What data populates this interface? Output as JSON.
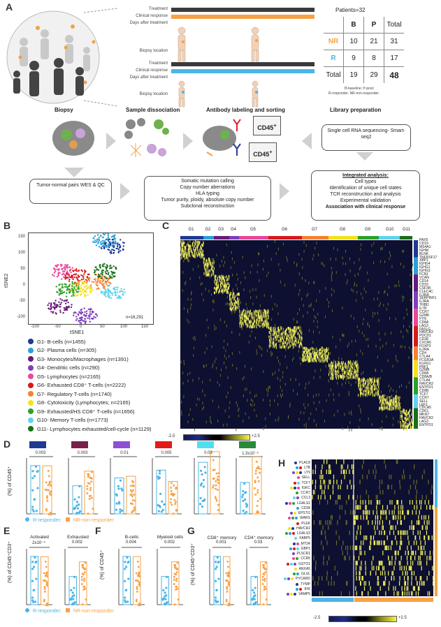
{
  "panels": {
    "A": "A",
    "B": "B",
    "C": "C",
    "D": "D",
    "E": "E",
    "F": "F",
    "G": "G",
    "H": "H"
  },
  "timeline": {
    "rows": [
      "Treatment",
      "Clinical response",
      "Days after treatment",
      "Biopsy location"
    ],
    "colors": {
      "treatment": "#3a3a3a",
      "nr": "#f7a145",
      "r": "#4db4e6"
    }
  },
  "patients_table": {
    "title": "Patients=32",
    "headers": [
      "",
      "B",
      "P",
      "Total"
    ],
    "rows": [
      {
        "label": "NR",
        "values": [
          "10",
          "21",
          "31"
        ]
      },
      {
        "label": "R",
        "values": [
          "9",
          "8",
          "17"
        ]
      },
      {
        "label": "Total",
        "values": [
          "19",
          "29",
          "48"
        ]
      }
    ],
    "footnote_1": "B-baseline; P-post;",
    "footnote_2": "R-responder; NR-non-responder"
  },
  "stages": [
    "Biopsy",
    "Sample dissociation",
    "Antibody labeling and sorting",
    "Library preparation"
  ],
  "cd45_top": "CD45",
  "cd45_bottom": "CD45",
  "rna_box": "Single cell RNA sequencing- Smart-seq2",
  "wes_box": "Tumor-normal pairs WES & QC",
  "mutation_lines": [
    "Somatic mutation calling",
    "Copy number aberrations",
    "HLA typing",
    "Tumor purity, ploidy, absolute copy number",
    "Subclonal reconstruction"
  ],
  "integrated": {
    "title": "Integrated analysis:",
    "lines": [
      "Cell types",
      "Identification of unique cell states",
      "TCR reconstruction and analysis",
      "Experimental validation"
    ],
    "bold": "Association with clinical response"
  },
  "tsne": {
    "xlabel": "tSNE1",
    "ylabel": "tSNE2",
    "n": "n=16,291",
    "xticks": [
      "-100",
      "-50",
      "0",
      "50",
      "100",
      "150"
    ],
    "yticks": [
      "150",
      "100",
      "50",
      "0",
      "-50",
      "-100"
    ]
  },
  "clusters": [
    {
      "name": "G1- B-cells (n=1455)",
      "color": "#1f3a93"
    },
    {
      "name": "G2- Plasma cells (n=305)",
      "color": "#2aa0d8"
    },
    {
      "name": "G3- Monocytes/Macrophages (n=1391)",
      "color": "#6a1a7a"
    },
    {
      "name": "G4- Dendritic cells (n=290)",
      "color": "#7f3fbf"
    },
    {
      "name": "G5- Lymphocytes (n=2165)",
      "color": "#e8479a"
    },
    {
      "name": "G6- Exhausted CD8⁺ T-cells (n=2222)",
      "color": "#d7191c"
    },
    {
      "name": "G7- Regulatory T-cells (n=1740)",
      "color": "#f58231"
    },
    {
      "name": "G8- Cytotoxicity (Lymphocytes; n=2165)",
      "color": "#f5e11a"
    },
    {
      "name": "G9- Exhausted/HS CD8⁺ T-cells (n=1656)",
      "color": "#2ca02c"
    },
    {
      "name": "G10- Memory T-cells (n=1773)",
      "color": "#5fd3f0"
    },
    {
      "name": "G11- Lymphocytes exhausted/cell-cycle (n=1129)",
      "color": "#1b6e1b"
    }
  ],
  "heatmap_c": {
    "groups": [
      "G1",
      "G2",
      "G3",
      "G4",
      "G5",
      "G6",
      "G7",
      "G8",
      "G9",
      "G10",
      "G11"
    ],
    "genes": [
      "PAX5",
      "CD19",
      "MS4A1",
      "IGHM",
      "BLNK",
      "TNFRSF17",
      "XBP1",
      "IGHG4",
      "IGHG1",
      "IGHG3",
      "FCN1",
      "VCAN",
      "CD14",
      "CD33",
      "CSF3R",
      "CLEC4C",
      "IL3RA",
      "SERPINF1",
      "IL3RA",
      "THBD",
      "IL7R",
      "CCR7",
      "GZMK",
      "FYN",
      "CD8A",
      "LAG3",
      "FASLG",
      "HAVCR2",
      "PDCD1",
      "CD38",
      "CXCR6",
      "FOXP3",
      "IL2RA",
      "CD4",
      "CTLA4",
      "FCGR3A",
      "KLRG1",
      "PRF1",
      "GZMB",
      "CD8A",
      "CD8A/B",
      "CTLA4",
      "HAVCR2",
      "ENTPD1",
      "CD8B",
      "TCF7",
      "CCR7",
      "SELL",
      "LEF1",
      "CDCA5",
      "CDK1",
      "MKI67",
      "HAVCR2",
      "LAG3",
      "ENTPD1"
    ],
    "colorbar_min": "-2.5",
    "colorbar_max": "+2.5"
  },
  "panel_d": {
    "ylabel": "(%) of CD45⁺",
    "pvals": [
      "0.003",
      "0.003",
      "0.01",
      "0.005",
      "0.03",
      "1.3x10⁻⁵"
    ],
    "colors": [
      "#1f3a93",
      "#7a1f4a",
      "#8e4fd6",
      "#e21a1a",
      "#4ee0f0",
      "#2a8a3a"
    ],
    "ymax": [
      "60",
      "80",
      "20",
      "80",
      "60",
      "25"
    ],
    "legend_r": "R-responder;",
    "legend_nr": "NR-non-responder"
  },
  "panel_e": {
    "ylabel": "(%) of CD45⁺CD3⁺",
    "titles": [
      "Activated",
      "Exhausted"
    ],
    "pvals": [
      "2x10⁻⁴",
      "0.002"
    ],
    "yticks": [
      "0",
      "20",
      "40",
      "60",
      "80"
    ],
    "legend_r": "R-responder;",
    "legend_nr": "NR-non-responder"
  },
  "panel_f": {
    "ylabel": "(%) of CD45⁺",
    "titles": [
      "B-cells",
      "Myeloid cells"
    ],
    "pvals": [
      "0.004",
      "0.002"
    ],
    "yticks": [
      "0",
      "20",
      "40",
      "60",
      "80"
    ]
  },
  "panel_g": {
    "ylabel": "(%) of CD45⁺CD3⁺",
    "titles": [
      "CD8⁺ memory",
      "CD4⁺ memory"
    ],
    "pvals": [
      "0.001",
      "0.03"
    ],
    "yticks": [
      "0",
      "10",
      "20",
      "30",
      "40",
      "50"
    ]
  },
  "heatmap_h": {
    "genes": [
      "PLAC8",
      "LTB",
      "LY9",
      "SELL",
      "TCF7",
      "IGKC",
      "CCR7",
      "CCL3",
      "LGALS1",
      "CD38",
      "EPSTI1",
      "WARS",
      "PLEK",
      "HAVCR2",
      "LGALS3",
      "FABP5",
      "MT2A",
      "GBP1",
      "PLSCR1",
      "CCR5",
      "GSTO1",
      "ANXA5",
      "GLUL",
      "PYCARD",
      "TYMP",
      "IFI6",
      "VAMP5"
    ],
    "colorbar_min": "-2.5",
    "colorbar_max": "+2.5"
  }
}
